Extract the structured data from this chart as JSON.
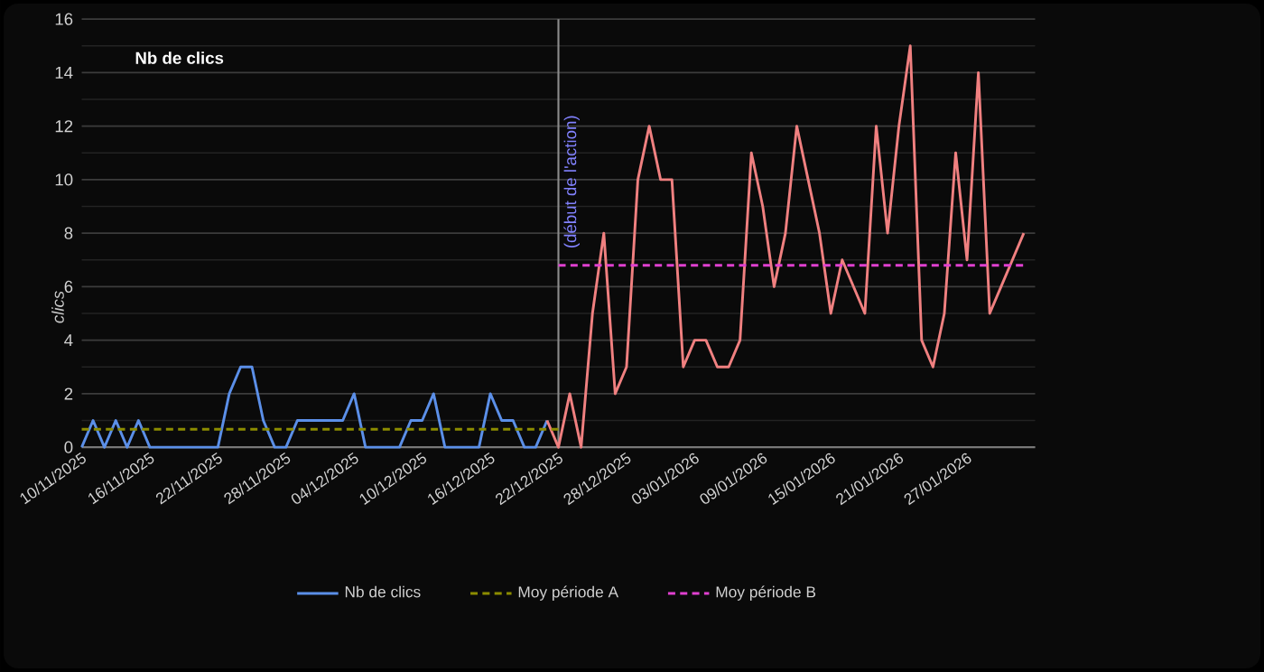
{
  "chart_data": {
    "type": "line",
    "title": "Nb de clics",
    "ylabel": "clics",
    "legend": "bottom",
    "grid": "y",
    "xlim": [
      "2025-11-10",
      "2026-02-02"
    ],
    "xticks": [
      {
        "value": "2025-11-10",
        "label": "10/11/2025"
      },
      {
        "value": "2025-11-16",
        "label": "16/11/2025"
      },
      {
        "value": "2025-11-22",
        "label": "22/11/2025"
      },
      {
        "value": "2025-11-28",
        "label": "28/11/2025"
      },
      {
        "value": "2025-12-04",
        "label": "04/12/2025"
      },
      {
        "value": "2025-12-10",
        "label": "10/12/2025"
      },
      {
        "value": "2025-12-16",
        "label": "16/12/2025"
      },
      {
        "value": "2025-12-22",
        "label": "22/12/2025"
      },
      {
        "value": "2025-12-28",
        "label": "28/12/2025"
      },
      {
        "value": "2026-01-03",
        "label": "03/01/2026"
      },
      {
        "value": "2026-01-09",
        "label": "09/01/2026"
      },
      {
        "value": "2026-01-15",
        "label": "15/01/2026"
      },
      {
        "value": "2026-01-21",
        "label": "21/01/2026"
      },
      {
        "value": "2026-01-27",
        "label": "27/01/2026"
      }
    ],
    "ylim": [
      0,
      16
    ],
    "yticks": [
      0,
      2,
      4,
      6,
      8,
      10,
      12,
      14,
      16
    ],
    "ref_lines": [
      {
        "axis": "x",
        "value": "2025-12-22",
        "label": "(début de l'action)",
        "color": "#8c8c8c"
      }
    ],
    "series": [
      {
        "name": "Nb de clics",
        "color": "#5b8fe8",
        "line_style": "solid",
        "x": [
          "2025-11-10",
          "2025-11-11",
          "2025-11-12",
          "2025-11-13",
          "2025-11-14",
          "2025-11-15",
          "2025-11-16",
          "2025-11-17",
          "2025-11-18",
          "2025-11-19",
          "2025-11-20",
          "2025-11-21",
          "2025-11-22",
          "2025-11-23",
          "2025-11-24",
          "2025-11-25",
          "2025-11-26",
          "2025-11-27",
          "2025-11-28",
          "2025-11-29",
          "2025-11-30",
          "2025-12-01",
          "2025-12-02",
          "2025-12-03",
          "2025-12-04",
          "2025-12-05",
          "2025-12-06",
          "2025-12-07",
          "2025-12-08",
          "2025-12-09",
          "2025-12-10",
          "2025-12-11",
          "2025-12-12",
          "2025-12-13",
          "2025-12-14",
          "2025-12-15",
          "2025-12-16",
          "2025-12-17",
          "2025-12-18",
          "2025-12-19",
          "2025-12-20",
          "2025-12-21"
        ],
        "values": [
          0,
          1,
          0,
          1,
          0,
          1,
          0,
          0,
          0,
          0,
          0,
          0,
          0,
          2,
          3,
          3,
          1,
          0,
          0,
          1,
          1,
          1,
          1,
          1,
          2,
          0,
          0,
          0,
          0,
          1,
          1,
          2,
          0,
          0,
          0,
          0,
          2,
          1,
          1,
          0,
          0,
          1
        ]
      },
      {
        "color": "#f08080",
        "line_style": "solid",
        "x": [
          "2025-12-21",
          "2025-12-22",
          "2025-12-23",
          "2025-12-24",
          "2025-12-25",
          "2025-12-26",
          "2025-12-27",
          "2025-12-28",
          "2025-12-29",
          "2025-12-30",
          "2025-12-31",
          "2026-01-01",
          "2026-01-02",
          "2026-01-03",
          "2026-01-04",
          "2026-01-05",
          "2026-01-06",
          "2026-01-07",
          "2026-01-08",
          "2026-01-09",
          "2026-01-10",
          "2026-01-11",
          "2026-01-12",
          "2026-01-13",
          "2026-01-14",
          "2026-01-15",
          "2026-01-16",
          "2026-01-17",
          "2026-01-18",
          "2026-01-19",
          "2026-01-20",
          "2026-01-21",
          "2026-01-22",
          "2026-01-23",
          "2026-01-24",
          "2026-01-25",
          "2026-01-26",
          "2026-01-27",
          "2026-01-28",
          "2026-01-29",
          "2026-01-30",
          "2026-01-31",
          "2026-02-01"
        ],
        "values": [
          1,
          0,
          2,
          0,
          5,
          8,
          2,
          3,
          10,
          12,
          10,
          10,
          3,
          4,
          4,
          3,
          3,
          4,
          11,
          9,
          6,
          8,
          12,
          10,
          8,
          5,
          7,
          6,
          5,
          12,
          8,
          12,
          15,
          4,
          3,
          5,
          11,
          7,
          14,
          5,
          6,
          7,
          8
        ]
      },
      {
        "name": "Moy période A",
        "color": "#8c8c00",
        "line_style": "dashed",
        "x": [
          "2025-11-10",
          "2025-12-22"
        ],
        "values": [
          0.67,
          0.67
        ]
      },
      {
        "name": "Moy période B",
        "color": "#e040d0",
        "line_style": "dashed",
        "x": [
          "2025-12-22",
          "2026-02-01"
        ],
        "values": [
          6.8,
          6.8
        ]
      }
    ]
  }
}
